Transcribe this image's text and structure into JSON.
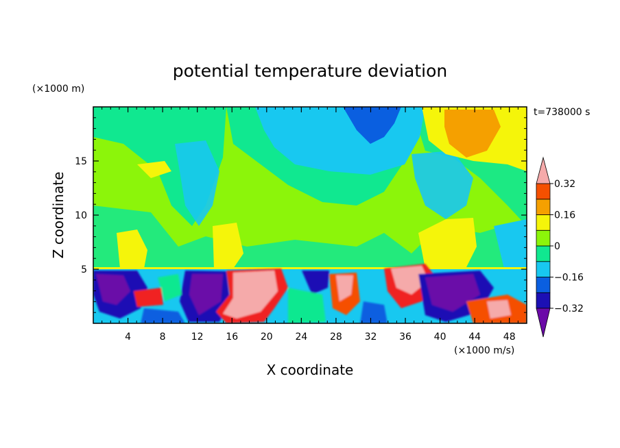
{
  "chart_data": {
    "type": "heatmap",
    "title": "potential temperature deviation",
    "xlabel": "X coordinate",
    "ylabel": "Z coordinate",
    "x_unit_label": "(×1000 m/s)",
    "y_unit_label": "(×1000 m)",
    "time_label": "t=738000 s",
    "xlim": [
      0,
      50
    ],
    "ylim": [
      0,
      20
    ],
    "x_ticks": [
      4,
      8,
      12,
      16,
      20,
      24,
      28,
      32,
      36,
      40,
      44,
      48
    ],
    "y_ticks": [
      5,
      10,
      15
    ],
    "colorbar": {
      "levels": [
        -0.4,
        -0.32,
        -0.24,
        -0.16,
        -0.08,
        0,
        0.08,
        0.16,
        0.24,
        0.32,
        0.4
      ],
      "tick_labels": [
        "0.32",
        "0.16",
        "0",
        "−0.16",
        "−0.32"
      ],
      "tick_values": [
        0.32,
        0.16,
        0,
        -0.16,
        -0.32
      ],
      "colors": [
        "#6b0aa8",
        "#1c10b4",
        "#0a5fe0",
        "#18c8f0",
        "#10e890",
        "#8cf50a",
        "#f5f50a",
        "#f5a000",
        "#f55000",
        "#f02020",
        "#f5aaaa"
      ],
      "extend": "both"
    },
    "regions": [
      {
        "desc": "upper layer mostly near zero",
        "z_range": [
          5.3,
          20
        ],
        "value": 0.02
      },
      {
        "desc": "cold anomaly top center",
        "x": 25,
        "z": 17,
        "value": -0.12
      },
      {
        "desc": "warm anomaly top right",
        "x": 43,
        "z": 17.5,
        "value": 0.2
      },
      {
        "desc": "turbulent boundary layer",
        "z_range": [
          0,
          5.3
        ],
        "value_range": [
          -0.4,
          0.4
        ]
      }
    ]
  }
}
